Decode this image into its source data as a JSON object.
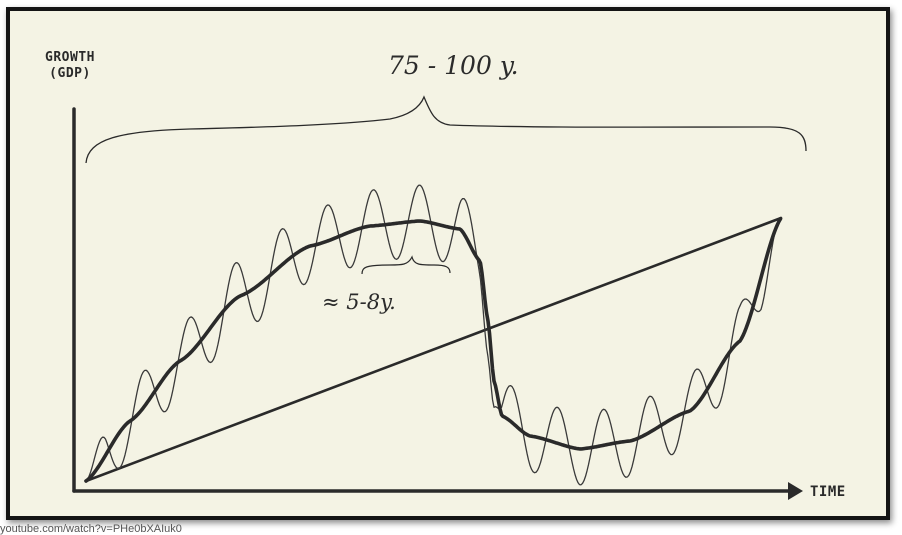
{
  "labels": {
    "y_axis_line1": "GROWTH",
    "y_axis_line2": "(GDP)",
    "x_axis": "TIME",
    "long_cycle": "75 - 100 y.",
    "short_cycle": "≈ 5-8y."
  },
  "caption": "youtube.com/watch?v=PHe0bXAIuk0",
  "colors": {
    "background": "#f4f3e4",
    "ink": "#2a2a2a",
    "frame": "#141414"
  }
}
